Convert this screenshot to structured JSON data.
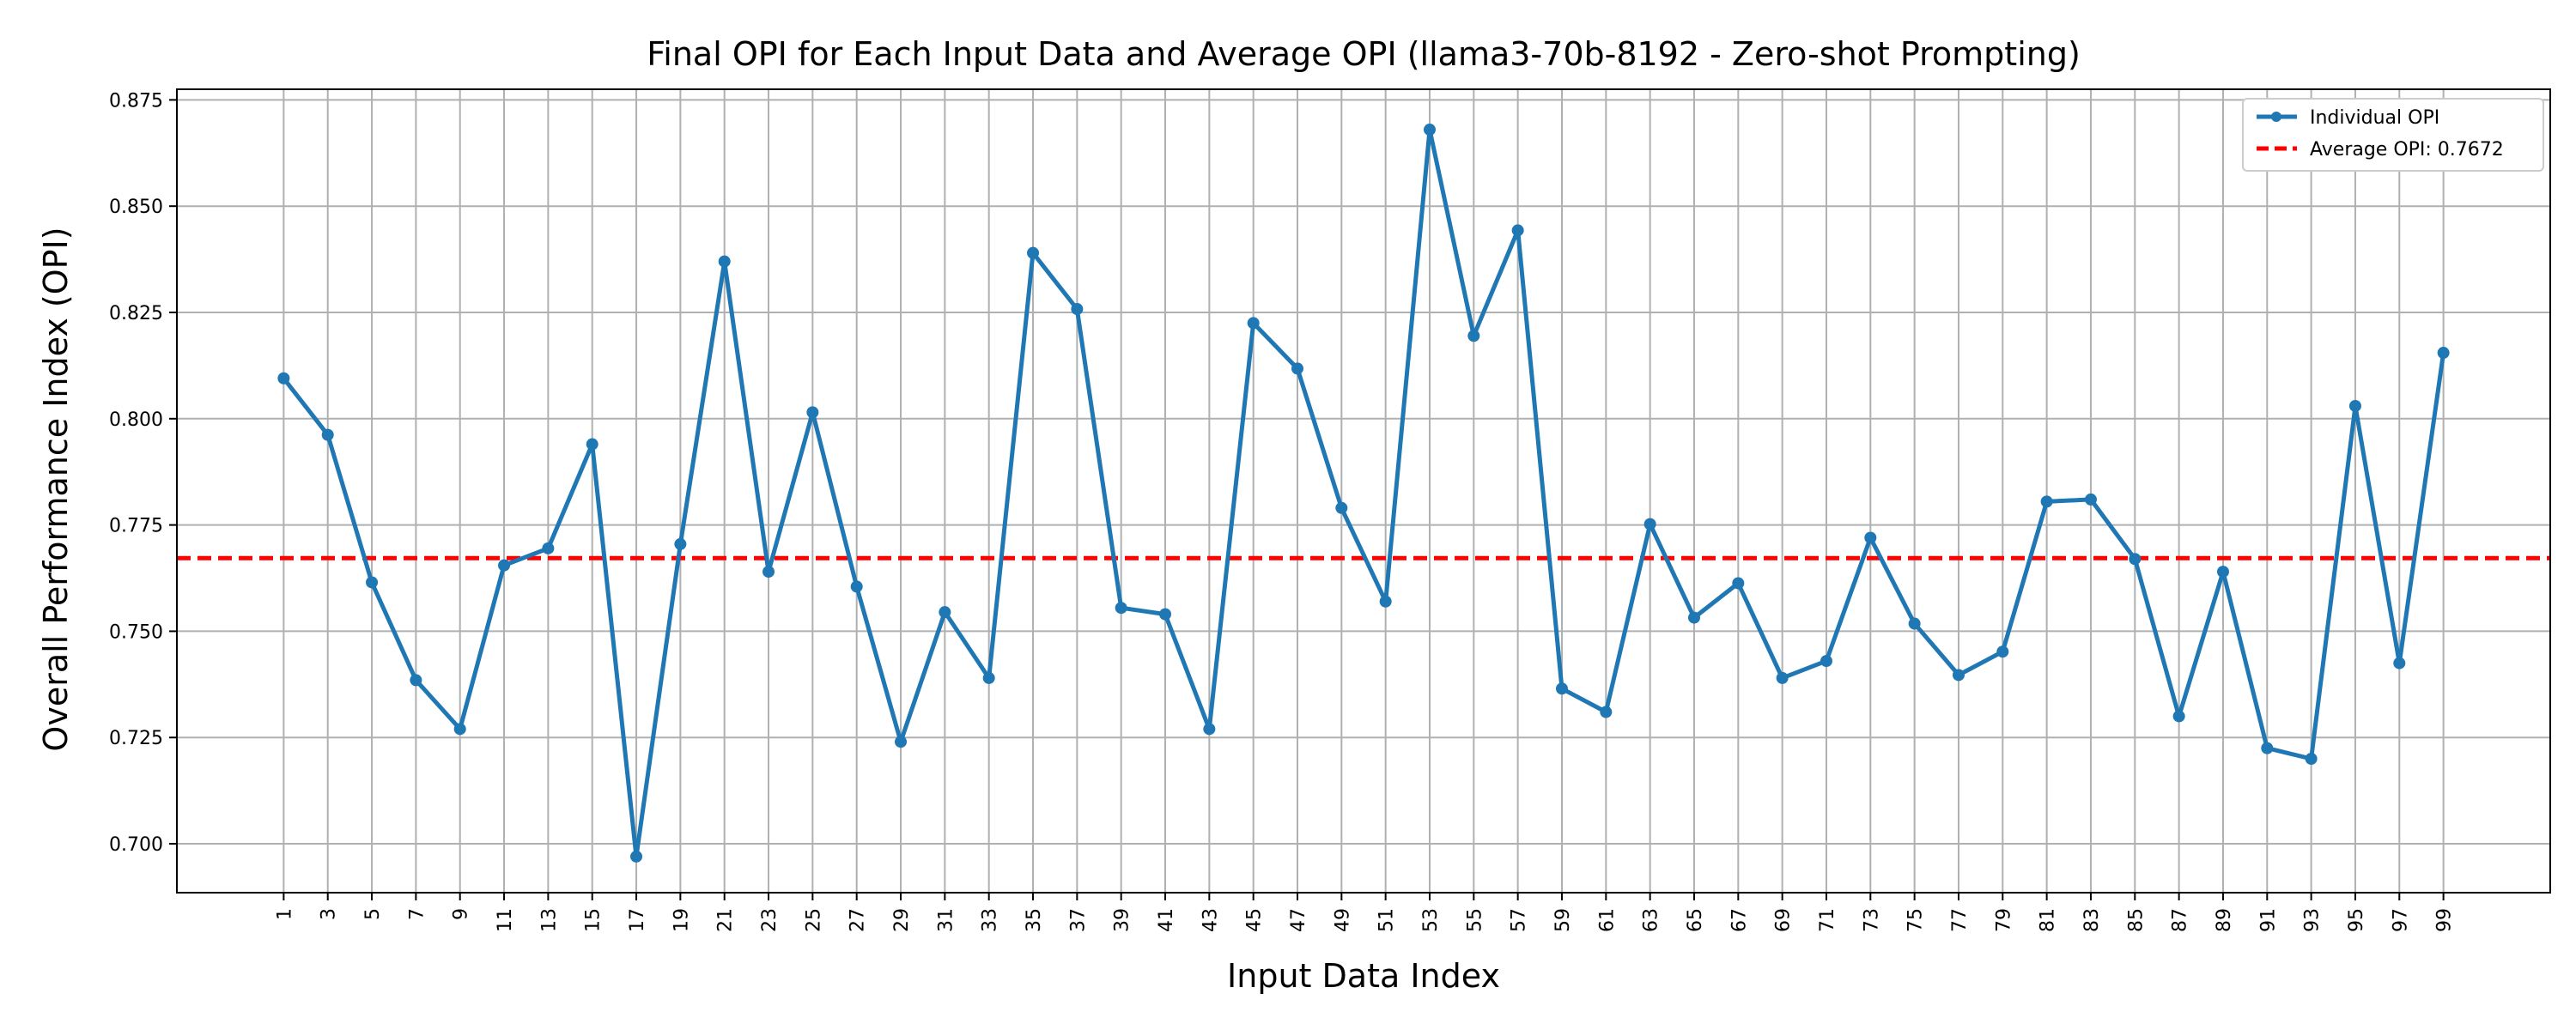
{
  "chart_data": {
    "type": "line",
    "title": "Final OPI for Each Input Data and Average OPI (llama3-70b-8192 - Zero-shot Prompting)",
    "xlabel": "Input Data Index",
    "ylabel": "Overall Performance Index (OPI)",
    "ylim": [
      0.6885,
      0.8775
    ],
    "yticks": [
      "0.700",
      "0.725",
      "0.750",
      "0.775",
      "0.800",
      "0.825",
      "0.850",
      "0.875"
    ],
    "x": [
      1,
      3,
      5,
      7,
      9,
      11,
      13,
      15,
      17,
      19,
      21,
      23,
      25,
      27,
      29,
      31,
      33,
      35,
      37,
      39,
      41,
      43,
      45,
      47,
      49,
      51,
      53,
      55,
      57,
      59,
      61,
      63,
      65,
      67,
      69,
      71,
      73,
      75,
      77,
      79,
      81,
      83,
      85,
      87,
      89,
      91,
      93,
      95,
      97,
      99
    ],
    "series": [
      {
        "name": "Individual OPI",
        "color": "#1f77b4",
        "values": [
          0.8095,
          0.7962,
          0.7615,
          0.7385,
          0.727,
          0.7655,
          0.7695,
          0.794,
          0.697,
          0.7705,
          0.837,
          0.764,
          0.8015,
          0.7605,
          0.724,
          0.7545,
          0.739,
          0.839,
          0.8258,
          0.7555,
          0.754,
          0.727,
          0.8225,
          0.8118,
          0.779,
          0.757,
          0.868,
          0.8195,
          0.8443,
          0.7365,
          0.731,
          0.7752,
          0.7532,
          0.7613,
          0.739,
          0.743,
          0.772,
          0.7518,
          0.7397,
          0.7452,
          0.7805,
          0.781,
          0.767,
          0.73,
          0.764,
          0.7225,
          0.72,
          0.803,
          0.7425,
          0.8155
        ]
      }
    ],
    "average": {
      "name": "Average OPI: 0.7672",
      "value": 0.7672,
      "color": "#ff0000"
    },
    "grid": true,
    "legend_position": "top-right"
  }
}
